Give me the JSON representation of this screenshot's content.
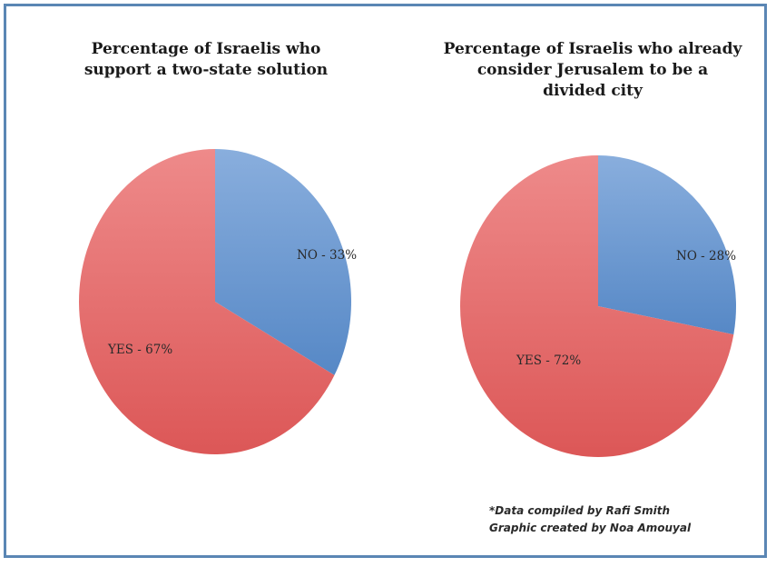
{
  "chart_data": [
    {
      "type": "pie",
      "title": "Percentage of Israelis who support a two-state solution",
      "title_lines": [
        "Percentage of Israelis who",
        "support a two-state solution"
      ],
      "slices": [
        {
          "label": "NO - 33%",
          "name": "NO",
          "value": 33,
          "color": "#5b8fd0"
        },
        {
          "label": "YES - 67%",
          "name": "YES",
          "value": 67,
          "color": "#e85c5c"
        }
      ]
    },
    {
      "type": "pie",
      "title": "Percentage of Israelis who already consider Jerusalem to be a divided city",
      "title_lines": [
        "Percentage of Israelis who already",
        "consider Jerusalem to be a",
        "divided city"
      ],
      "slices": [
        {
          "label": "NO - 28%",
          "name": "NO",
          "value": 28,
          "color": "#5b8fd0"
        },
        {
          "label": "YES - 72%",
          "name": "YES",
          "value": 72,
          "color": "#e85c5c"
        }
      ]
    }
  ],
  "credits": {
    "line1": "*Data compiled by Rafi Smith",
    "line2": "Graphic created by Noa Amouyal"
  },
  "colors": {
    "frame_border": "#5a86b4",
    "no_slice": "#5b8fd0",
    "yes_slice": "#e85c5c"
  }
}
